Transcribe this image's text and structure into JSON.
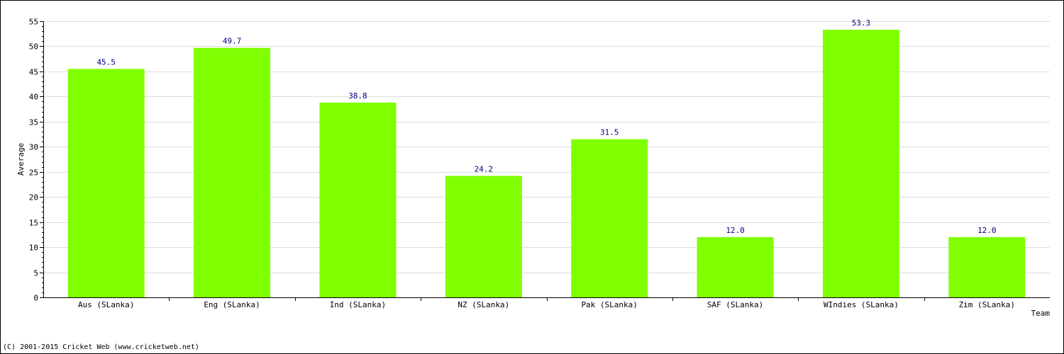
{
  "chart_data": {
    "type": "bar",
    "categories": [
      "Aus (SLanka)",
      "Eng (SLanka)",
      "Ind (SLanka)",
      "NZ (SLanka)",
      "Pak (SLanka)",
      "SAF (SLanka)",
      "WIndies (SLanka)",
      "Zim (SLanka)"
    ],
    "values": [
      45.5,
      49.7,
      38.8,
      24.2,
      31.5,
      12.0,
      53.3,
      12.0
    ],
    "value_labels": [
      "45.5",
      "49.7",
      "38.8",
      "24.2",
      "31.5",
      "12.0",
      "53.3",
      "12.0"
    ],
    "xlabel": "Team",
    "ylabel": "Average",
    "ylim": [
      0,
      55
    ],
    "yticks": [
      0,
      5,
      10,
      15,
      20,
      25,
      30,
      35,
      40,
      45,
      50,
      55
    ],
    "grid": true,
    "colors": {
      "bar": "#80ff00",
      "value_label": "#000080",
      "grid": "#dddddd",
      "axis": "#000000"
    }
  },
  "footer": {
    "copyright": "(C) 2001-2015 Cricket Web (www.cricketweb.net)"
  }
}
